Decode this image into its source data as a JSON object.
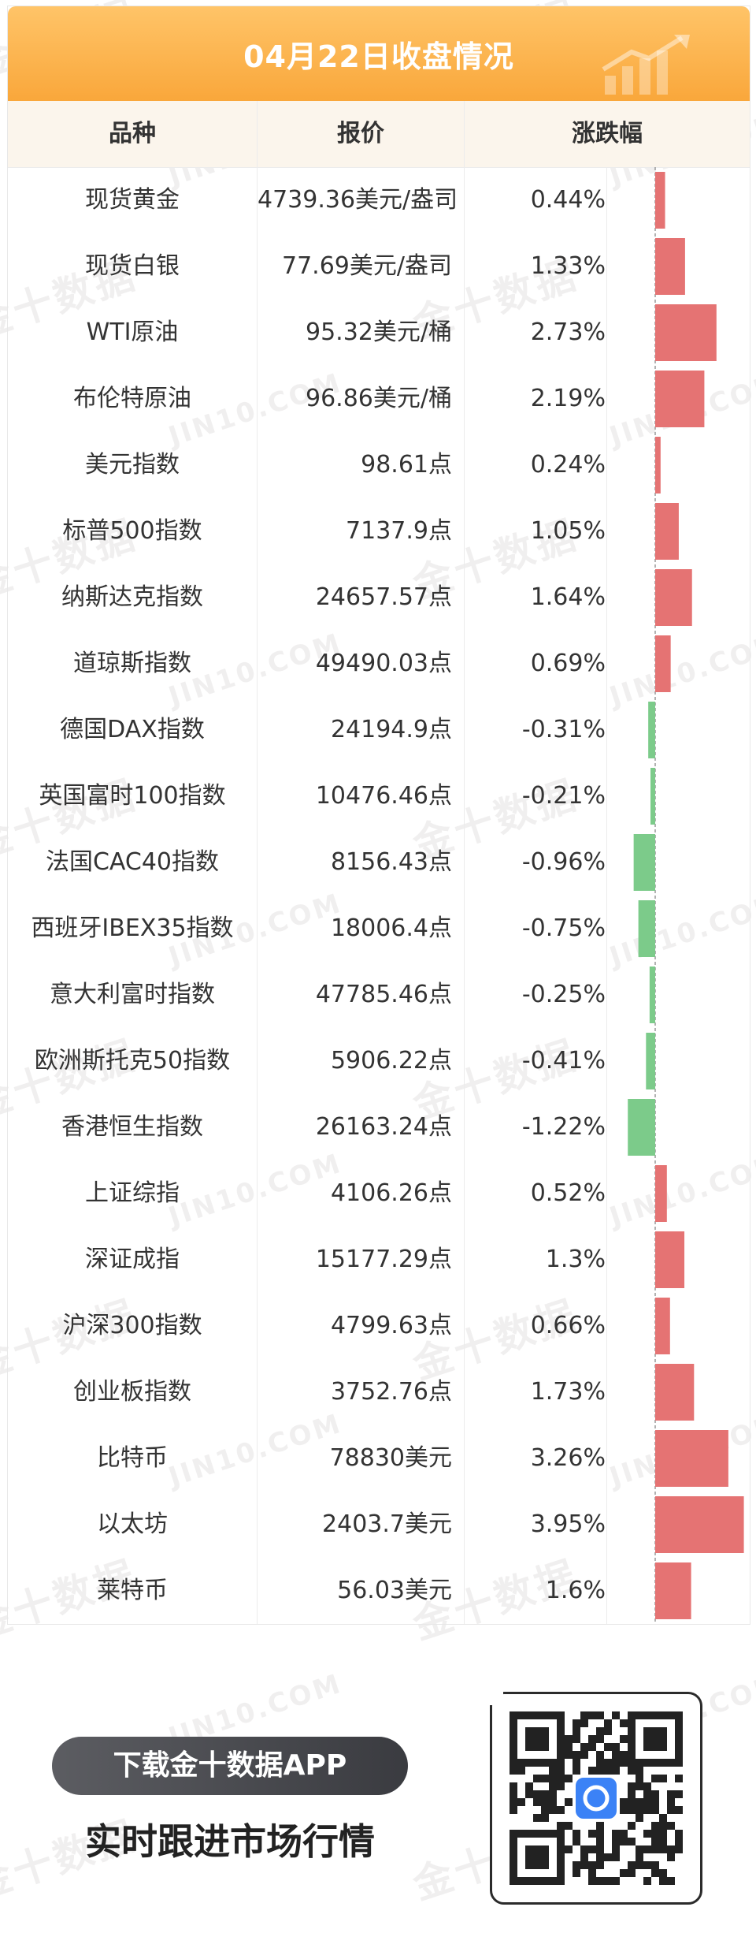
{
  "header": {
    "title": "04月22日收盘情况"
  },
  "columns": {
    "name": "品种",
    "price": "报价",
    "change": "涨跌幅"
  },
  "watermark": {
    "cn": "金十数据",
    "en": "JIN10.COM"
  },
  "colors": {
    "up": "#e57373",
    "down": "#7ccb8a",
    "title_gradient_top": "#ffc468",
    "title_gradient_bottom": "#f9a73b",
    "header_bg": "#fbf5ec"
  },
  "chart_data": {
    "type": "table",
    "columns": [
      "品种",
      "报价",
      "涨跌幅"
    ],
    "rows": [
      {
        "name": "现货黄金",
        "price": "4739.36美元/盎司",
        "change": "0.44%",
        "value": 0.44
      },
      {
        "name": "现货白银",
        "price": "77.69美元/盎司",
        "change": "1.33%",
        "value": 1.33
      },
      {
        "name": "WTI原油",
        "price": "95.32美元/桶",
        "change": "2.73%",
        "value": 2.73
      },
      {
        "name": "布伦特原油",
        "price": "96.86美元/桶",
        "change": "2.19%",
        "value": 2.19
      },
      {
        "name": "美元指数",
        "price": "98.61点",
        "change": "0.24%",
        "value": 0.24
      },
      {
        "name": "标普500指数",
        "price": "7137.9点",
        "change": "1.05%",
        "value": 1.05
      },
      {
        "name": "纳斯达克指数",
        "price": "24657.57点",
        "change": "1.64%",
        "value": 1.64
      },
      {
        "name": "道琼斯指数",
        "price": "49490.03点",
        "change": "0.69%",
        "value": 0.69
      },
      {
        "name": "德国DAX指数",
        "price": "24194.9点",
        "change": "-0.31%",
        "value": -0.31
      },
      {
        "name": "英国富时100指数",
        "price": "10476.46点",
        "change": "-0.21%",
        "value": -0.21
      },
      {
        "name": "法国CAC40指数",
        "price": "8156.43点",
        "change": "-0.96%",
        "value": -0.96
      },
      {
        "name": "西班牙IBEX35指数",
        "price": "18006.4点",
        "change": "-0.75%",
        "value": -0.75
      },
      {
        "name": "意大利富时指数",
        "price": "47785.46点",
        "change": "-0.25%",
        "value": -0.25
      },
      {
        "name": "欧洲斯托克50指数",
        "price": "5906.22点",
        "change": "-0.41%",
        "value": -0.41
      },
      {
        "name": "香港恒生指数",
        "price": "26163.24点",
        "change": "-1.22%",
        "value": -1.22
      },
      {
        "name": "上证综指",
        "price": "4106.26点",
        "change": "0.52%",
        "value": 0.52
      },
      {
        "name": "深证成指",
        "price": "15177.29点",
        "change": "1.3%",
        "value": 1.3
      },
      {
        "name": "沪深300指数",
        "price": "4799.63点",
        "change": "0.66%",
        "value": 0.66
      },
      {
        "name": "创业板指数",
        "price": "3752.76点",
        "change": "1.73%",
        "value": 1.73
      },
      {
        "name": "比特币",
        "price": "78830美元",
        "change": "3.26%",
        "value": 3.26
      },
      {
        "name": "以太坊",
        "price": "2403.7美元",
        "change": "3.95%",
        "value": 3.95
      },
      {
        "name": "莱特币",
        "price": "56.03美元",
        "change": "1.6%",
        "value": 1.6
      }
    ]
  },
  "footer": {
    "cta_label": "下载金十数据APP",
    "cta_subtitle": "实时跟进市场行情",
    "qr_icon": "qr-code-with-app-logo"
  }
}
